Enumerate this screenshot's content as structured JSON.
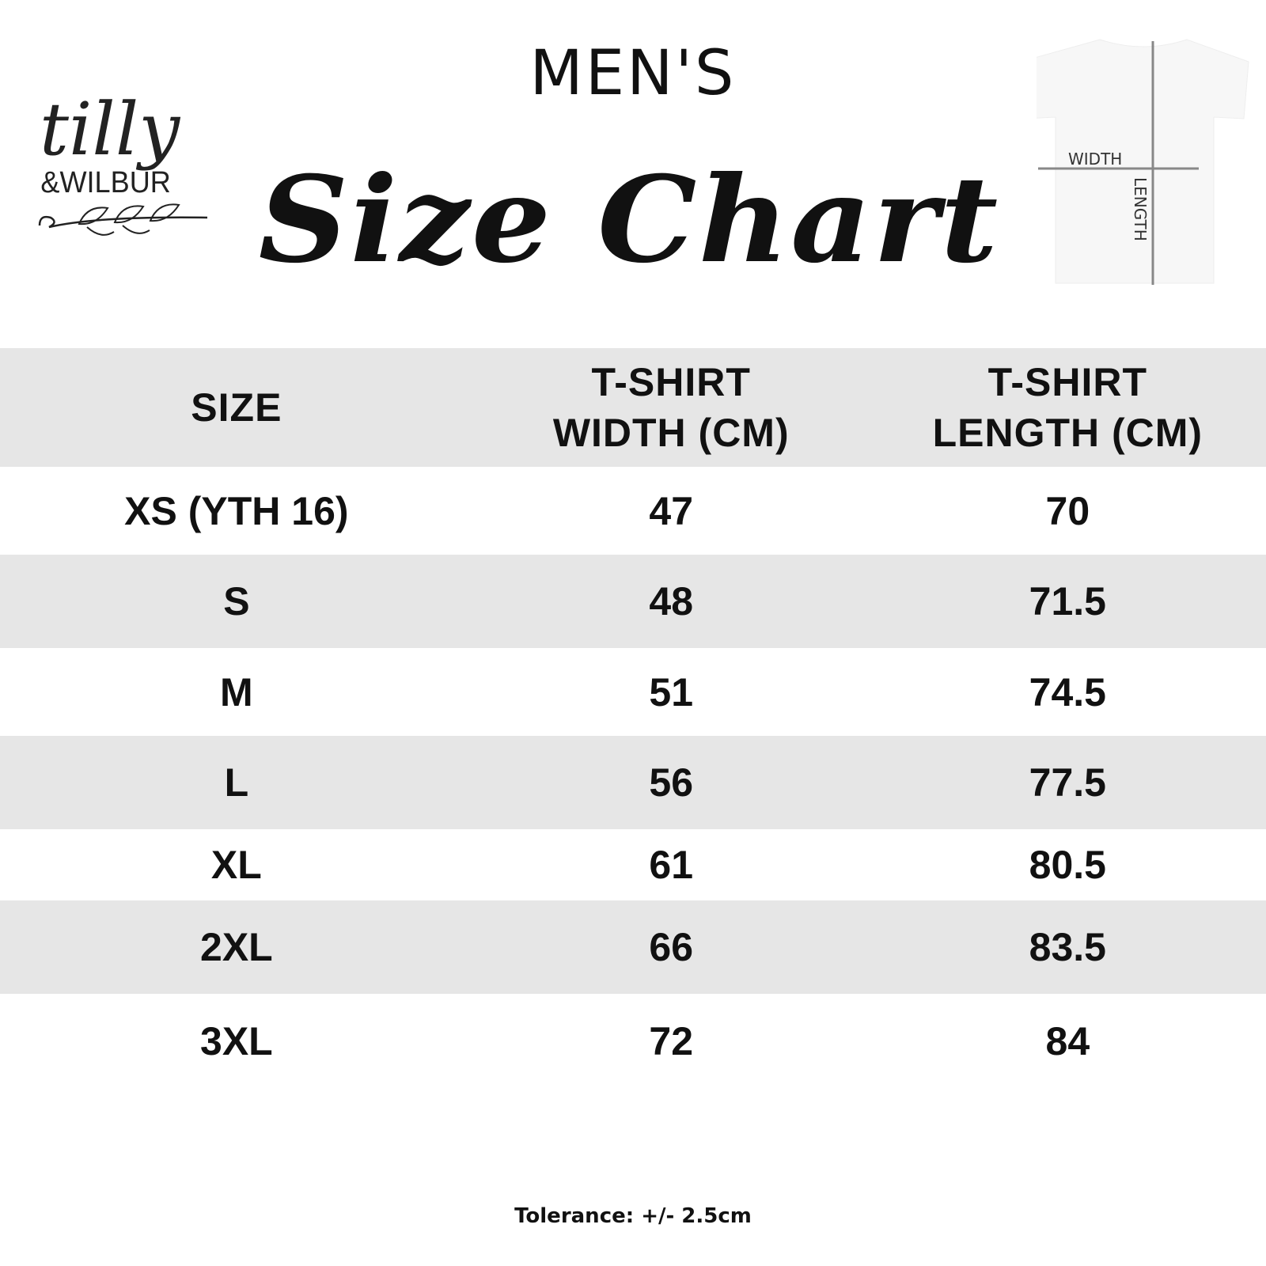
{
  "brand": {
    "logo_text": "tilly & WILBUR"
  },
  "header": {
    "subtitle": "MEN'S",
    "title": "Size Chart"
  },
  "diagram": {
    "width_label": "WIDTH",
    "length_label": "LENGTH"
  },
  "table": {
    "headers": [
      "SIZE",
      "T-SHIRT WIDTH (CM)",
      "T-SHIRT LENGTH (CM)"
    ],
    "rows": [
      [
        "XS (YTH 16)",
        "47",
        "70"
      ],
      [
        "S",
        "48",
        "71.5"
      ],
      [
        "M",
        "51",
        "74.5"
      ],
      [
        "L",
        "56",
        "77.5"
      ],
      [
        "XL",
        "61",
        "80.5"
      ],
      [
        "2XL",
        "66",
        "83.5"
      ],
      [
        "3XL",
        "72",
        "84"
      ]
    ],
    "stripe_color": "#e6e6e6"
  },
  "footer": {
    "tolerance": "Tolerance: +/- 2.5cm"
  }
}
